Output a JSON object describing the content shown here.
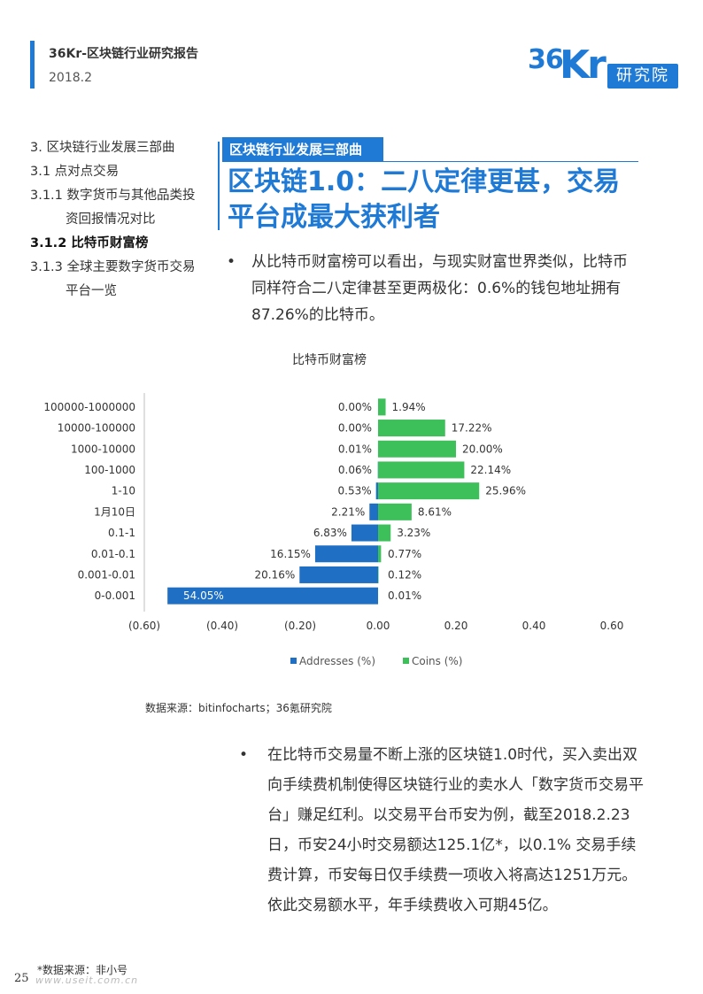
{
  "header": {
    "title": "36Kr-区块链行业研究报告",
    "date": "2018.2"
  },
  "logo": {
    "numerals": "36",
    "letters": "Kr",
    "box_text": "研究院",
    "color": "#1f7ad6"
  },
  "toc": {
    "items": [
      {
        "label": "3. 区块链行业发展三部曲",
        "active": false
      },
      {
        "label": "3.1 点对点交易",
        "active": false
      },
      {
        "label": "3.1.1 数字货币与其他品类投",
        "active": false
      },
      {
        "label": "资回报情况对比",
        "active": false
      },
      {
        "label": "3.1.2 比特币财富榜",
        "active": true
      },
      {
        "label": "3.1.3 全球主要数字货币交易",
        "active": false
      },
      {
        "label": "平台一览",
        "active": false
      }
    ]
  },
  "section": {
    "tag": "区块链行业发展三部曲",
    "title_line1": "区块链1.0：二八定律更甚，交易",
    "title_line2": "平台成最大获利者"
  },
  "bullet1": {
    "dot": "•",
    "text": "从比特币财富榜可以看出，与现实财富世界类似，比特币同样符合二八定律甚至更两极化：0.6%的钱包地址拥有87.26%的比特币。"
  },
  "chart_data": {
    "type": "bar",
    "orientation": "horizontal",
    "title": "比特币财富榜",
    "categories": [
      "100000-1000000",
      "10000-100000",
      "1000-10000",
      "100-1000",
      "1-10",
      "1月10日",
      "0.1-1",
      "0.01-0.1",
      "0.001-0.01",
      "0-0.001"
    ],
    "series": [
      {
        "name": "Addresses (%)",
        "color": "#1f6fc5",
        "values": [
          -0.0,
          -0.0,
          -0.0001,
          -0.0006,
          -0.0053,
          -0.0221,
          -0.0683,
          -0.1615,
          -0.2016,
          -0.5405
        ],
        "labels": [
          "0.00%",
          "0.00%",
          "0.01%",
          "0.06%",
          "0.53%",
          "2.21%",
          "6.83%",
          "16.15%",
          "20.16%",
          "54.05%"
        ]
      },
      {
        "name": "Coins (%)",
        "color": "#3dbf5a",
        "values": [
          0.0194,
          0.1722,
          0.2,
          0.2214,
          0.2596,
          0.0861,
          0.0323,
          0.0077,
          0.0012,
          0.0001
        ],
        "labels": [
          "1.94%",
          "17.22%",
          "20.00%",
          "22.14%",
          "25.96%",
          "8.61%",
          "3.23%",
          "0.77%",
          "0.12%",
          "0.01%"
        ]
      }
    ],
    "xlim": [
      -0.6,
      0.6
    ],
    "xticks": [
      "(0.60)",
      "(0.40)",
      "(0.20)",
      "0.00",
      "0.20",
      "0.40",
      "0.60"
    ],
    "legend_position": "bottom",
    "grid": false
  },
  "source_note": "数据来源：bitinfocharts；36氪研究院",
  "bullet2": {
    "dot": "•",
    "text": "在比特币交易量不断上涨的区块链1.0时代，买入卖出双向手续费机制使得区块链行业的卖水人「数字货币交易平台」赚足红利。以交易平台币安为例，截至2018.2.23日，币安24小时交易额达125.1亿*，以0.1% 交易手续费计算，币安每日仅手续费一项收入将高达1251万元。依此交易额水平，年手续费收入可期45亿。"
  },
  "footnote": "*数据来源：非小号",
  "page_number": "25",
  "watermark": "www.useit.com.cn"
}
